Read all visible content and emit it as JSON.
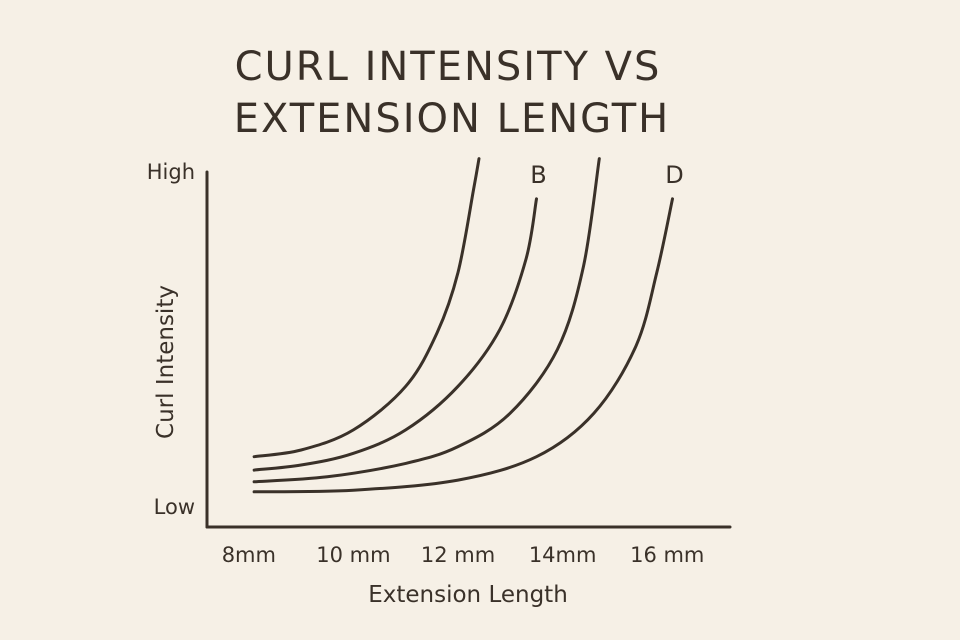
{
  "chart_data": {
    "type": "line",
    "title": [
      "CURL INTENSITY VS",
      "EXTENSION LENGTH"
    ],
    "xlabel": "Extension Length",
    "ylabel": "Curl Intensity",
    "x_ticks": [
      {
        "value": 8,
        "label": "8mm"
      },
      {
        "value": 10,
        "label": "10 mm"
      },
      {
        "value": 12,
        "label": "12 mm"
      },
      {
        "value": 14,
        "label": "14mm"
      },
      {
        "value": 16,
        "label": "16 mm"
      }
    ],
    "y_ticks": [
      {
        "value": 0,
        "label": "Low"
      },
      {
        "value": 1,
        "label": "High"
      }
    ],
    "xlim": [
      7.2,
      17.2
    ],
    "ylim": [
      -0.06,
      1.0
    ],
    "grid": false,
    "legend": "none",
    "color": "#3a3129",
    "series": [
      {
        "points": [
          [
            8.1,
            0.15
          ],
          [
            9.0,
            0.17
          ],
          [
            10.0,
            0.23
          ],
          [
            11.0,
            0.36
          ],
          [
            11.6,
            0.52
          ],
          [
            12.0,
            0.7
          ],
          [
            12.3,
            0.95
          ],
          [
            12.4,
            1.04
          ]
        ]
      },
      {
        "name": "B",
        "points": [
          [
            8.1,
            0.11
          ],
          [
            9.0,
            0.125
          ],
          [
            10.0,
            0.16
          ],
          [
            11.0,
            0.23
          ],
          [
            12.0,
            0.36
          ],
          [
            12.8,
            0.53
          ],
          [
            13.3,
            0.74
          ],
          [
            13.5,
            0.92
          ]
        ]
      },
      {
        "points": [
          [
            8.1,
            0.075
          ],
          [
            9.5,
            0.09
          ],
          [
            11.0,
            0.13
          ],
          [
            12.0,
            0.18
          ],
          [
            13.0,
            0.28
          ],
          [
            13.9,
            0.47
          ],
          [
            14.4,
            0.72
          ],
          [
            14.7,
            1.04
          ]
        ]
      },
      {
        "name": "D",
        "points": [
          [
            8.1,
            0.045
          ],
          [
            10.0,
            0.05
          ],
          [
            12.0,
            0.08
          ],
          [
            13.5,
            0.15
          ],
          [
            14.6,
            0.28
          ],
          [
            15.4,
            0.48
          ],
          [
            15.8,
            0.7
          ],
          [
            16.1,
            0.92
          ]
        ]
      }
    ]
  }
}
